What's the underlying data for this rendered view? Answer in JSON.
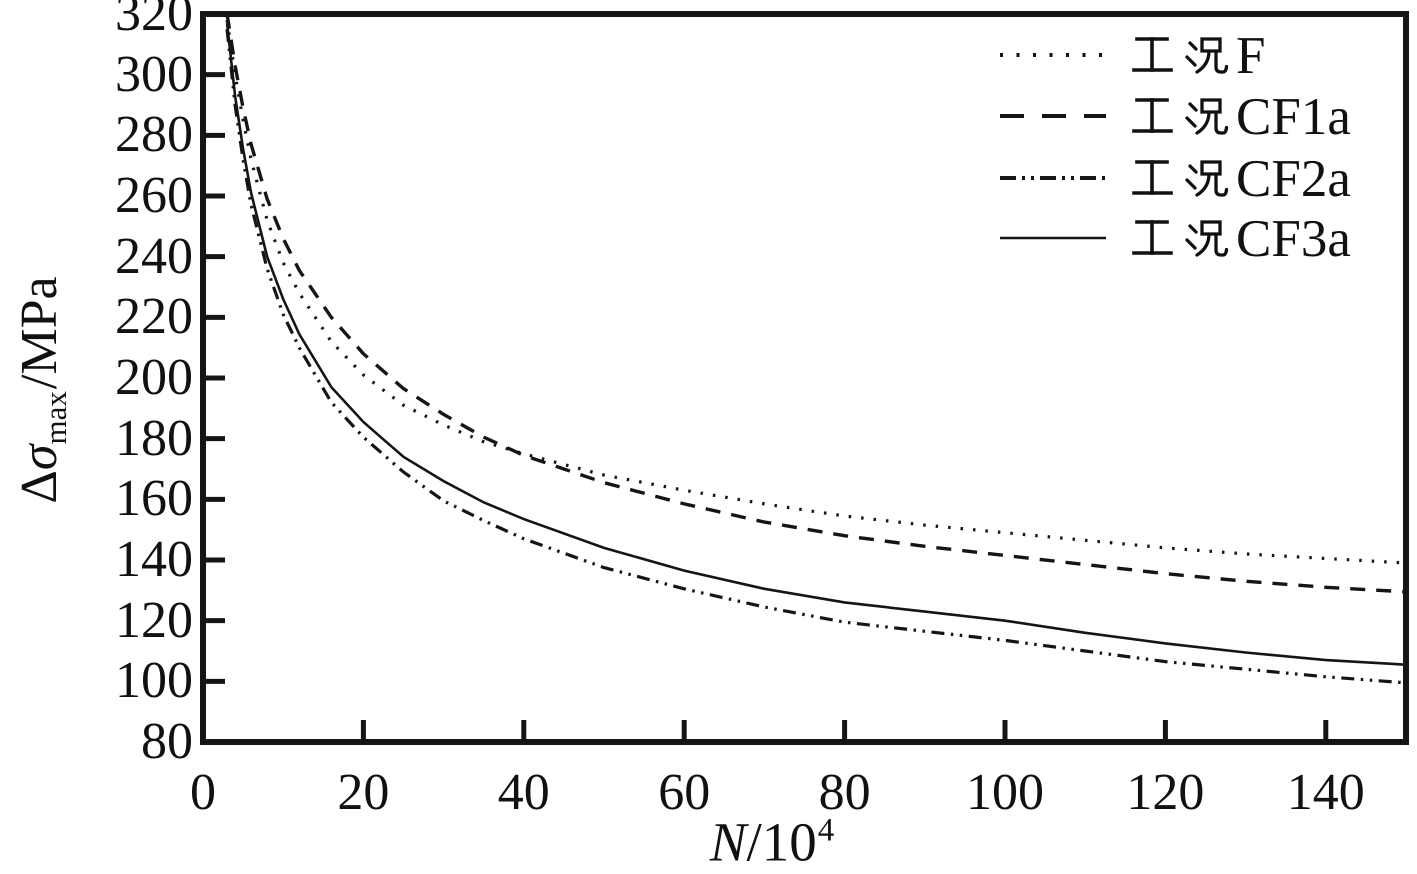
{
  "figure": {
    "background": "#ffffff",
    "line_color": "#151515",
    "text_color": "#111111"
  },
  "y_axis": {
    "title_delta": "Δ",
    "title_sigma": "σ",
    "title_subscript": "max",
    "title_unit": "/MPa",
    "min": 80,
    "max": 320,
    "tick_labels": [
      "320",
      "300",
      "280",
      "260",
      "240",
      "220",
      "200",
      "180",
      "160",
      "140",
      "120",
      "100",
      "80"
    ]
  },
  "x_axis": {
    "title_symbol": "N",
    "title_base": "/10",
    "title_exponent": "4",
    "min": 0,
    "max": 150,
    "tick_labels": [
      "0",
      "20",
      "40",
      "60",
      "80",
      "100",
      "120",
      "140"
    ]
  },
  "legend": {
    "position": "upper right",
    "items": [
      {
        "label": "工况F",
        "latin_suffix": "F",
        "line_style": "dotted"
      },
      {
        "label": "工况CF1a",
        "latin_suffix": "CF1a",
        "line_style": "dashed"
      },
      {
        "label": "工况CF2a",
        "latin_suffix": "CF2a",
        "line_style": "dash-dot-dot"
      },
      {
        "label": "工况CF3a",
        "latin_suffix": "CF3a",
        "line_style": "solid"
      }
    ]
  },
  "chart_data": {
    "type": "line",
    "title": "",
    "xlabel": "N/10^4",
    "ylabel": "Δσmax/MPa",
    "xlim": [
      0,
      150
    ],
    "ylim": [
      80,
      320
    ],
    "grid": false,
    "legend_position": "upper right",
    "x": [
      3,
      4,
      5,
      6,
      8,
      10,
      12,
      16,
      20,
      25,
      30,
      35,
      40,
      50,
      60,
      70,
      80,
      90,
      100,
      110,
      120,
      130,
      140,
      150
    ],
    "series": [
      {
        "name": "工况F",
        "style": "dotted",
        "values": [
          318,
          300,
          285,
          272,
          252,
          238,
          228,
          212,
          201,
          191,
          184.5,
          179,
          175,
          168,
          163,
          158.5,
          154.5,
          151.5,
          149,
          146.5,
          144,
          142,
          140.5,
          139
        ]
      },
      {
        "name": "工况CF1a",
        "style": "dashed",
        "values": [
          320,
          303,
          289,
          277,
          259,
          246,
          235.5,
          220,
          208,
          196.5,
          188,
          180.5,
          174.5,
          165.5,
          158.5,
          152.5,
          148,
          144.5,
          141.5,
          138.5,
          135.5,
          133,
          131,
          129.5
        ]
      },
      {
        "name": "工况CF2a",
        "style": "dash-dot-dot",
        "values": [
          315,
          290,
          272,
          257,
          236,
          221,
          210,
          192,
          180.5,
          169,
          159.5,
          153,
          147,
          137.5,
          130.5,
          124.5,
          119.5,
          116.5,
          113.5,
          110,
          106.5,
          104,
          101.5,
          99.5
        ]
      },
      {
        "name": "工况CF3a",
        "style": "solid",
        "values": [
          317,
          293,
          275.5,
          261,
          240,
          226,
          214.5,
          197,
          185.5,
          174,
          166,
          159,
          153.5,
          144,
          136.5,
          130.5,
          126,
          123,
          120,
          116,
          112.5,
          109.5,
          107,
          105.5
        ]
      }
    ]
  }
}
